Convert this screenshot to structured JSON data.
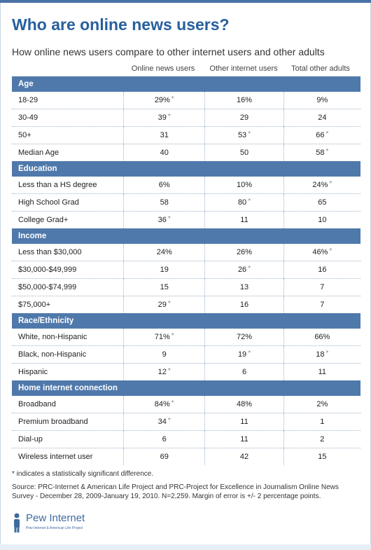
{
  "title": "Who are online news users?",
  "subtitle": "How online news users compare to other internet users and other adults",
  "columns": [
    "Online news users",
    "Other internet users",
    "Total other adults"
  ],
  "sections": [
    {
      "name": "Age",
      "rows": [
        {
          "label": "18-29",
          "cells": [
            {
              "v": "29%",
              "sig": true
            },
            {
              "v": "16%",
              "sig": false
            },
            {
              "v": "9%",
              "sig": false
            }
          ]
        },
        {
          "label": "30-49",
          "cells": [
            {
              "v": "39",
              "sig": true
            },
            {
              "v": "29",
              "sig": false
            },
            {
              "v": "24",
              "sig": false
            }
          ]
        },
        {
          "label": "50+",
          "cells": [
            {
              "v": "31",
              "sig": false
            },
            {
              "v": "53",
              "sig": true
            },
            {
              "v": "66",
              "sig": true
            }
          ]
        },
        {
          "label": "Median Age",
          "cells": [
            {
              "v": "40",
              "sig": false
            },
            {
              "v": "50",
              "sig": false
            },
            {
              "v": "58",
              "sig": true
            }
          ]
        }
      ]
    },
    {
      "name": "Education",
      "rows": [
        {
          "label": "Less than a HS degree",
          "cells": [
            {
              "v": "6%",
              "sig": false
            },
            {
              "v": "10%",
              "sig": false
            },
            {
              "v": "24%",
              "sig": true
            }
          ]
        },
        {
          "label": "High School Grad",
          "cells": [
            {
              "v": "58",
              "sig": false
            },
            {
              "v": "80",
              "sig": true
            },
            {
              "v": "65",
              "sig": false
            }
          ]
        },
        {
          "label": "College Grad+",
          "cells": [
            {
              "v": "36",
              "sig": true
            },
            {
              "v": "11",
              "sig": false
            },
            {
              "v": "10",
              "sig": false
            }
          ]
        }
      ]
    },
    {
      "name": "Income",
      "rows": [
        {
          "label": "Less than $30,000",
          "cells": [
            {
              "v": "24%",
              "sig": false
            },
            {
              "v": "26%",
              "sig": false
            },
            {
              "v": "46%",
              "sig": true
            }
          ]
        },
        {
          "label": "$30,000-$49,999",
          "cells": [
            {
              "v": "19",
              "sig": false
            },
            {
              "v": "26",
              "sig": true
            },
            {
              "v": "16",
              "sig": false
            }
          ]
        },
        {
          "label": "$50,000-$74,999",
          "cells": [
            {
              "v": "15",
              "sig": false
            },
            {
              "v": "13",
              "sig": false
            },
            {
              "v": "7",
              "sig": false
            }
          ]
        },
        {
          "label": "$75,000+",
          "cells": [
            {
              "v": "29",
              "sig": true
            },
            {
              "v": "16",
              "sig": false
            },
            {
              "v": "7",
              "sig": false
            }
          ]
        }
      ]
    },
    {
      "name": "Race/Ethnicity",
      "rows": [
        {
          "label": "White, non-Hispanic",
          "cells": [
            {
              "v": "71%",
              "sig": true
            },
            {
              "v": "72%",
              "sig": false
            },
            {
              "v": "66%",
              "sig": false
            }
          ]
        },
        {
          "label": "Black, non-Hispanic",
          "cells": [
            {
              "v": "9",
              "sig": false
            },
            {
              "v": "19",
              "sig": true
            },
            {
              "v": "18",
              "sig": true
            }
          ]
        },
        {
          "label": "Hispanic",
          "cells": [
            {
              "v": "12",
              "sig": true
            },
            {
              "v": "6",
              "sig": false
            },
            {
              "v": "11",
              "sig": false
            }
          ]
        }
      ]
    },
    {
      "name": "Home internet connection",
      "rows": [
        {
          "label": "Broadband",
          "cells": [
            {
              "v": "84%",
              "sig": true
            },
            {
              "v": "48%",
              "sig": false
            },
            {
              "v": "2%",
              "sig": false
            }
          ]
        },
        {
          "label": "Premium broadband",
          "cells": [
            {
              "v": "34",
              "sig": true
            },
            {
              "v": "11",
              "sig": false
            },
            {
              "v": "1",
              "sig": false
            }
          ]
        },
        {
          "label": "Dial-up",
          "cells": [
            {
              "v": "6",
              "sig": false
            },
            {
              "v": "11",
              "sig": false
            },
            {
              "v": "2",
              "sig": false
            }
          ]
        },
        {
          "label": "Wireless internet user",
          "cells": [
            {
              "v": "69",
              "sig": false
            },
            {
              "v": "42",
              "sig": false
            },
            {
              "v": "15",
              "sig": false
            }
          ]
        }
      ]
    }
  ],
  "star_symbol": "*",
  "note": "* indicates a statistically significant difference.",
  "source": "Source: PRC-Internet & American Life Project and PRC-Project for Excellence in Journalism Online News Survey - December 28, 2009-January 19, 2010. N=2,259. Margin of error is +/- 2 percentage points.",
  "logo": {
    "name": "Pew Internet",
    "tagline": "Pew Internet & American Life Project"
  },
  "colors": {
    "accent": "#27609d",
    "section_bg": "#4f79ab",
    "divider": "#9fb3c8"
  },
  "chart_data": {
    "type": "table",
    "title": "Who are online news users?",
    "subtitle": "How online news users compare to other internet users and other adults",
    "columns": [
      "Online news users",
      "Other internet users",
      "Total other adults"
    ],
    "groups": [
      {
        "name": "Age",
        "rows": [
          {
            "label": "18-29",
            "values": [
              29,
              16,
              9
            ]
          },
          {
            "label": "30-49",
            "values": [
              39,
              29,
              24
            ]
          },
          {
            "label": "50+",
            "values": [
              31,
              53,
              66
            ]
          },
          {
            "label": "Median Age",
            "values": [
              40,
              50,
              58
            ]
          }
        ]
      },
      {
        "name": "Education",
        "rows": [
          {
            "label": "Less than a HS degree",
            "values": [
              6,
              10,
              24
            ]
          },
          {
            "label": "High School Grad",
            "values": [
              58,
              80,
              65
            ]
          },
          {
            "label": "College Grad+",
            "values": [
              36,
              11,
              10
            ]
          }
        ]
      },
      {
        "name": "Income",
        "rows": [
          {
            "label": "Less than $30,000",
            "values": [
              24,
              26,
              46
            ]
          },
          {
            "label": "$30,000-$49,999",
            "values": [
              19,
              26,
              16
            ]
          },
          {
            "label": "$50,000-$74,999",
            "values": [
              15,
              13,
              7
            ]
          },
          {
            "label": "$75,000+",
            "values": [
              29,
              16,
              7
            ]
          }
        ]
      },
      {
        "name": "Race/Ethnicity",
        "rows": [
          {
            "label": "White, non-Hispanic",
            "values": [
              71,
              72,
              66
            ]
          },
          {
            "label": "Black, non-Hispanic",
            "values": [
              9,
              19,
              18
            ]
          },
          {
            "label": "Hispanic",
            "values": [
              12,
              6,
              11
            ]
          }
        ]
      },
      {
        "name": "Home internet connection",
        "rows": [
          {
            "label": "Broadband",
            "values": [
              84,
              48,
              2
            ]
          },
          {
            "label": "Premium broadband",
            "values": [
              34,
              11,
              1
            ]
          },
          {
            "label": "Dial-up",
            "values": [
              6,
              11,
              2
            ]
          },
          {
            "label": "Wireless internet user",
            "values": [
              69,
              42,
              15
            ]
          }
        ]
      }
    ]
  }
}
